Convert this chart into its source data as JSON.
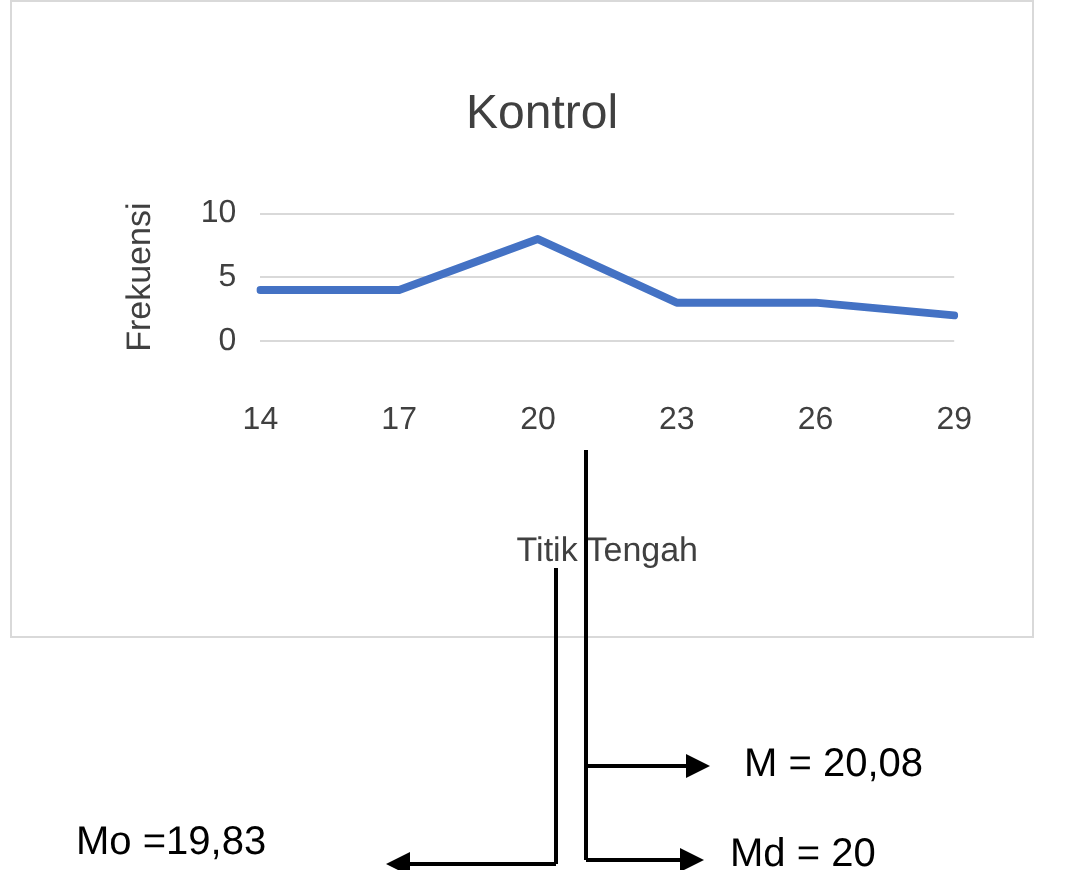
{
  "chart_data": {
    "type": "line",
    "title": "Kontrol",
    "xlabel": "Titik Tengah",
    "ylabel": "Frekuensi",
    "categories": [
      "14",
      "17",
      "20",
      "23",
      "26",
      "29"
    ],
    "series": [
      {
        "color": "#4472c4",
        "values": [
          4,
          4,
          8,
          3,
          3,
          2
        ]
      }
    ],
    "ylim": [
      0,
      10
    ],
    "yticks": [
      0,
      5,
      10
    ],
    "grid": "y",
    "legend": false,
    "marker": "none",
    "line_style": "solid",
    "annotations": [
      "M = 20,08",
      "Md = 20",
      "Mo =19,83"
    ]
  }
}
